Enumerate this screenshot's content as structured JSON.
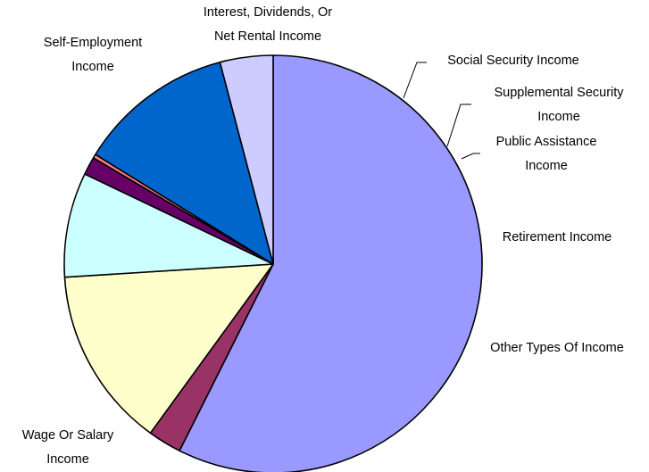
{
  "chart_data": {
    "type": "pie",
    "title": "",
    "categories": [
      "Wage Or Salary Income",
      "Self-Employment Income",
      "Interest, Dividends, Or Net Rental Income",
      "Social Security Income",
      "Supplemental Security Income",
      "Public Assistance Income",
      "Retirement Income",
      "Other Types Of Income"
    ],
    "label_lines": [
      [
        "Wage Or Salary",
        "Income"
      ],
      [
        "Self-Employment",
        "Income"
      ],
      [
        "Interest, Dividends, Or",
        "Net Rental Income"
      ],
      [
        "Social Security Income"
      ],
      [
        "Supplemental Security",
        "Income"
      ],
      [
        "Public Assistance",
        "Income"
      ],
      [
        "Retirement Income"
      ],
      [
        "Other Types Of Income"
      ]
    ],
    "values": [
      57.4,
      2.6,
      14.0,
      8.1,
      1.4,
      0.3,
      12.1,
      4.1
    ],
    "colors": [
      "#9999FF",
      "#993366",
      "#FFFFCC",
      "#CCFFFF",
      "#660066",
      "#FF8080",
      "#0066CC",
      "#CCCCFF"
    ],
    "start_angle_deg": -90,
    "direction": "clockwise",
    "legend": "none",
    "data_labels": "category names outside slices"
  }
}
